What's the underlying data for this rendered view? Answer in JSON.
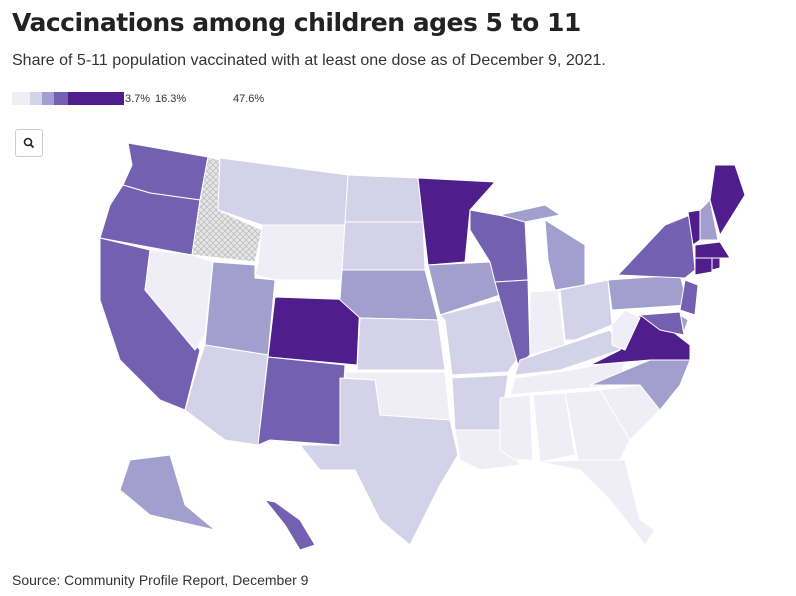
{
  "title": "Vaccinations among children ages 5 to 11",
  "subtitle": "Share of 5-11 population vaccinated with at least one dose as of December 9, 2021.",
  "legend": {
    "colors": [
      "#efeef6",
      "#d3d2e8",
      "#a29fce",
      "#7460b0",
      "#4f1d8c"
    ],
    "labels": [
      "3.7%",
      "16.3%",
      "47.6%"
    ]
  },
  "source": "Source: Community Profile Report, December 9"
}
